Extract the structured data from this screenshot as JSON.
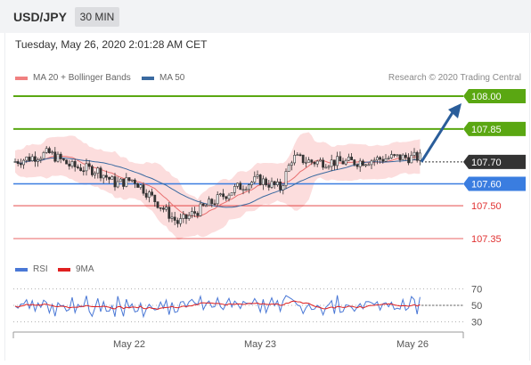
{
  "header": {
    "pair": "USD/JPY",
    "timeframe": "30 MIN"
  },
  "date": "Tuesday, May 26, 2020 2:01:28 AM CET",
  "legend": {
    "bb_label": "MA 20 + Bollinger Bands",
    "ma50_label": "MA 50",
    "credit": "Research © 2020 Trading Central",
    "rsi_label": "RSI",
    "rsi_ma_label": "9MA"
  },
  "colors": {
    "bb_fill": "#fcd9d9",
    "ma20": "#e87070",
    "ma50": "#3a6aa0",
    "target": "#5aa712",
    "pivot": "#3a7de0",
    "support": "#e03030",
    "arrow": "#2a5d9a",
    "rsi": "#4a78d6",
    "rsi_ma": "#e02020"
  },
  "chart_data": {
    "type": "candlestick",
    "x_ticks": [
      "May 22",
      "May 23",
      "May 26"
    ],
    "y_range": [
      107.28,
      108.03
    ],
    "current_price": "107.70",
    "levels": [
      {
        "label": "108.00",
        "value": 108.0,
        "kind": "resistance"
      },
      {
        "label": "107.85",
        "value": 107.85,
        "kind": "resistance"
      },
      {
        "label": "107.70",
        "value": 107.7,
        "kind": "current"
      },
      {
        "label": "107.60",
        "value": 107.6,
        "kind": "pivot"
      },
      {
        "label": "107.50",
        "value": 107.5,
        "kind": "support"
      },
      {
        "label": "107.35",
        "value": 107.35,
        "kind": "support"
      }
    ],
    "forecast": {
      "from": 107.7,
      "to": 108.0
    },
    "rsi": {
      "levels": [
        70,
        50,
        30
      ],
      "level_labels": [
        "70",
        "50",
        "30"
      ]
    }
  }
}
